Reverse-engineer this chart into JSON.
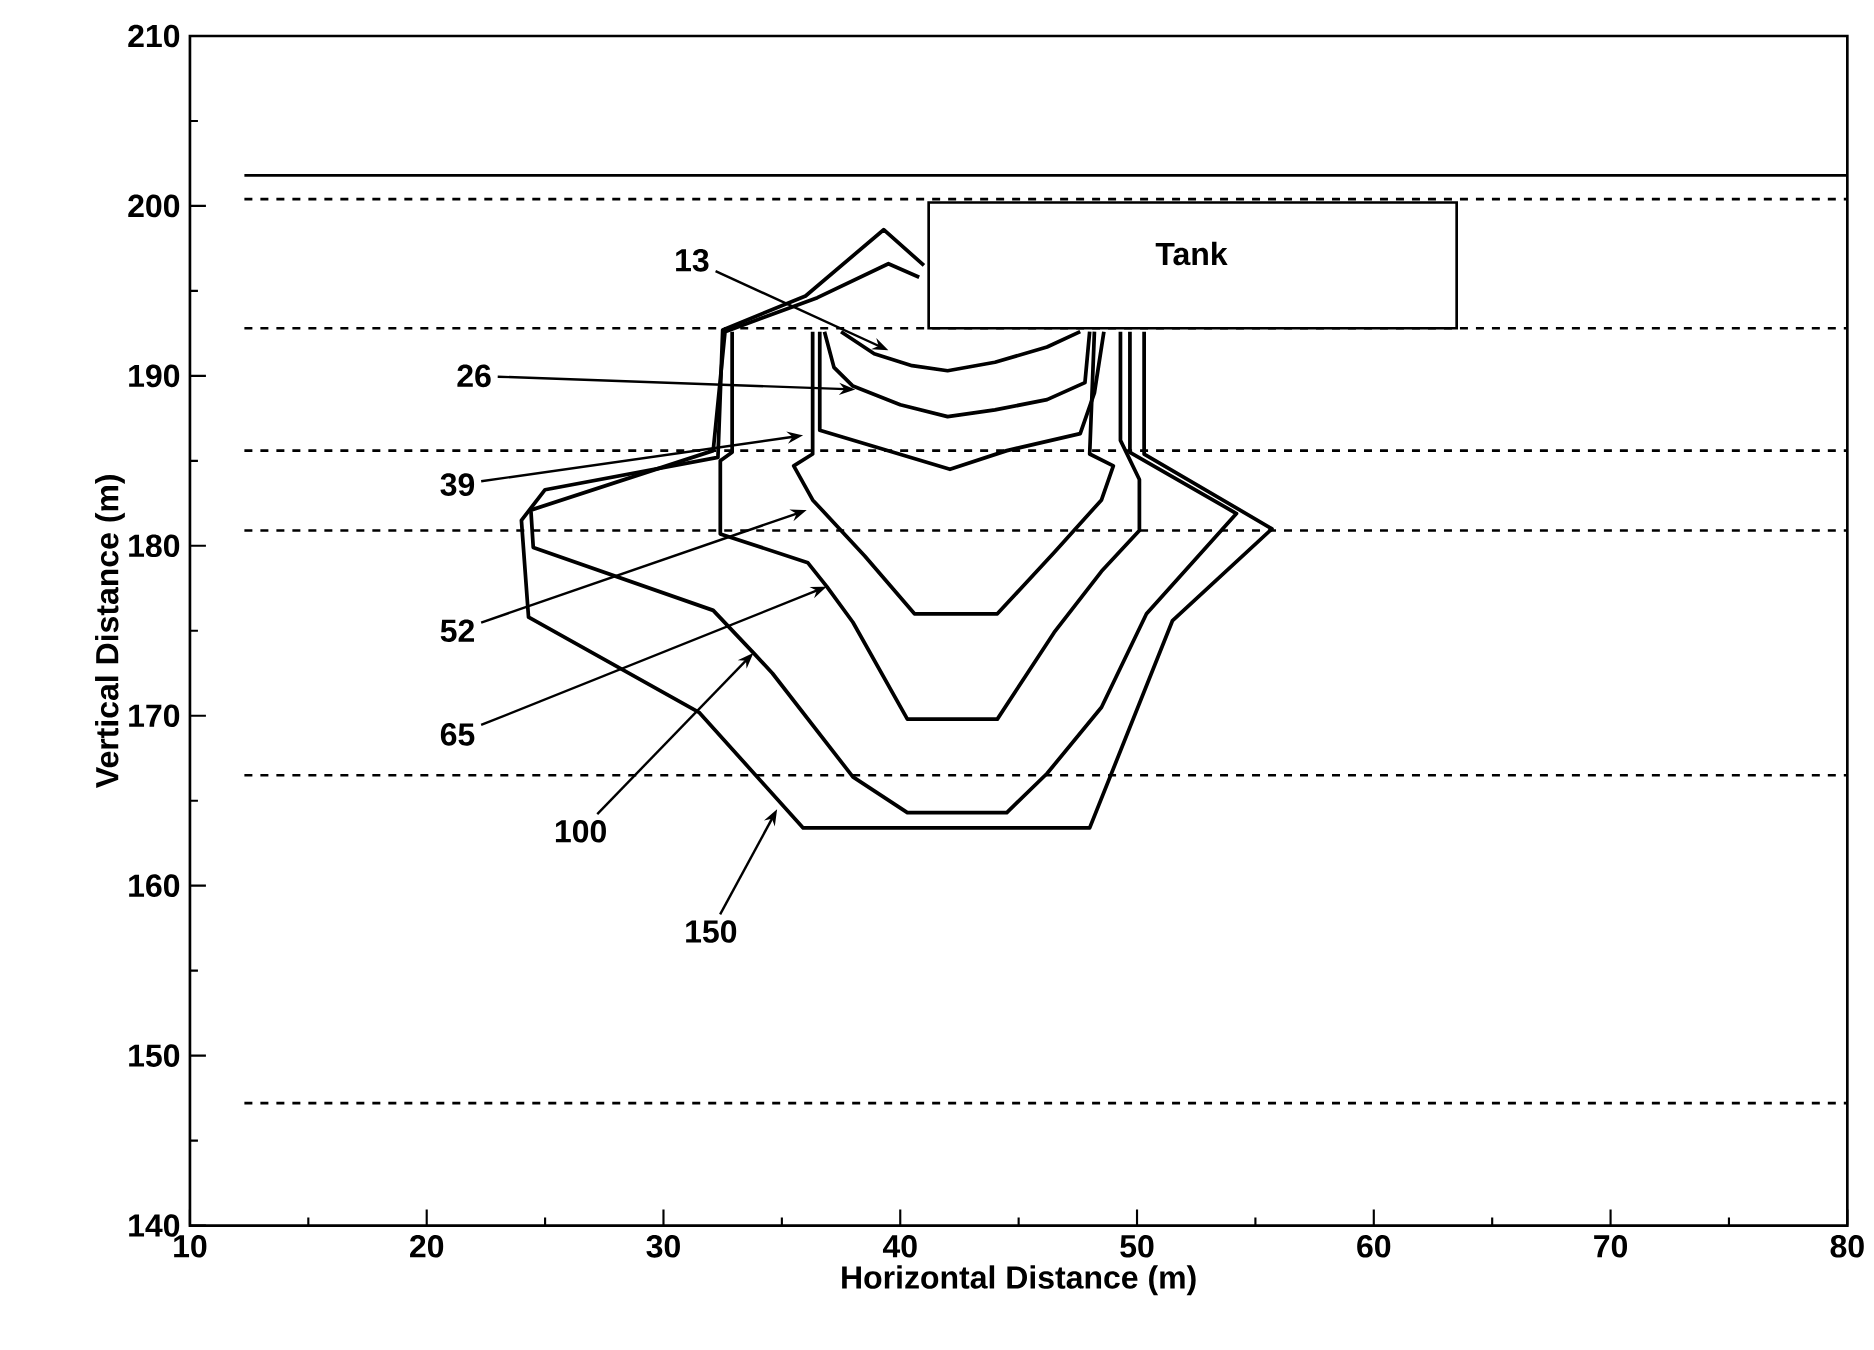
{
  "chart_data": {
    "type": "line",
    "xlabel": "Horizontal Distance (m)",
    "ylabel": "Vertical Distance (m)",
    "xlim": [
      10,
      80
    ],
    "ylim": [
      140,
      210
    ],
    "xticks": [
      10,
      20,
      30,
      40,
      50,
      60,
      70,
      80
    ],
    "yticks": [
      140,
      150,
      160,
      170,
      180,
      190,
      200,
      210
    ],
    "grid": false,
    "line_style": "solid",
    "series": [
      {
        "color": "#000000",
        "x": [
          37.5,
          38.9,
          40.5,
          42,
          44,
          46.2,
          47.6
        ],
        "values": [
          192.6,
          191.3,
          190.6,
          190.3,
          190.8,
          191.7,
          192.6
        ]
      },
      {
        "color": "#000000",
        "x": [
          36.8,
          37.2,
          38,
          40,
          42,
          44,
          46.2,
          47.8,
          48
        ],
        "values": [
          192.6,
          190.5,
          189.4,
          188.3,
          187.6,
          188,
          188.6,
          189.6,
          192.6
        ]
      },
      {
        "color": "#000000",
        "x": [
          36.6,
          36.6,
          39,
          42.1,
          44.5,
          47.6,
          48.2,
          48.6
        ],
        "values": [
          192.6,
          186.8,
          185.8,
          184.5,
          185.6,
          186.6,
          189,
          192.6
        ]
      },
      {
        "color": "#000000",
        "x": [
          36.3,
          36.3,
          35.5,
          36.3,
          38.5,
          40.6,
          44.1,
          46.5,
          48.5,
          49,
          48,
          48.2
        ],
        "values": [
          192.6,
          185.4,
          184.7,
          182.7,
          179.4,
          176,
          176,
          179.6,
          182.7,
          184.7,
          185.4,
          192.6
        ]
      },
      {
        "color": "#000000",
        "x": [
          32.9,
          32.9,
          32.4,
          32.4,
          36.1,
          36.9,
          38,
          40.3,
          44.1,
          46.5,
          48.5,
          50.1,
          50.1,
          49.3,
          49.3
        ],
        "values": [
          192.6,
          185.5,
          185,
          180.7,
          179,
          177.6,
          175.5,
          169.8,
          169.8,
          174.9,
          178.5,
          180.9,
          183.9,
          186.2,
          192.6
        ]
      },
      {
        "color": "#000000",
        "x": [
          40.8,
          39.5,
          36.5,
          32.6,
          32.1,
          24.4,
          24.5,
          32.1,
          33.8,
          34.6,
          38,
          40.3,
          44.5,
          46.2,
          48.5,
          50.4,
          54.2,
          49.7,
          49.7
        ],
        "values": [
          195.8,
          196.6,
          194.6,
          192.6,
          185.6,
          182.1,
          179.9,
          176.2,
          173.7,
          172.5,
          166.4,
          164.3,
          164.3,
          166.6,
          170.5,
          176,
          181.9,
          185.5,
          192.6
        ]
      },
      {
        "color": "#000000",
        "x": [
          41,
          39.3,
          36,
          32.5,
          32.3,
          25,
          24,
          24.3,
          31.5,
          35.9,
          48,
          51.5,
          55.7,
          50.3,
          50.3
        ],
        "values": [
          196.5,
          198.6,
          194.7,
          192.7,
          185.2,
          183.3,
          181.5,
          175.8,
          170.2,
          163.4,
          163.4,
          175.6,
          181,
          185.4,
          192.6
        ]
      }
    ],
    "ref_lines": [
      {
        "axis": "y",
        "value": 201.8,
        "line_style": "solid"
      },
      {
        "axis": "y",
        "value": 200.4,
        "line_style": "dashed"
      },
      {
        "axis": "y",
        "value": 192.8,
        "line_style": "dashed"
      },
      {
        "axis": "y",
        "value": 185.6,
        "line_style": "dashed"
      },
      {
        "axis": "y",
        "value": 180.9,
        "line_style": "dashed"
      },
      {
        "axis": "y",
        "value": 166.5,
        "line_style": "dashed"
      },
      {
        "axis": "y",
        "value": 147.2,
        "line_style": "dashed"
      }
    ],
    "annotations": [
      {
        "text": "13",
        "x": 39.5,
        "y": 191.5
      },
      {
        "text": "26",
        "x": 38.1,
        "y": 189.2
      },
      {
        "text": "39",
        "x": 35.9,
        "y": 186.5
      },
      {
        "text": "52",
        "x": 36.05,
        "y": 182.1
      },
      {
        "text": "65",
        "x": 36.9,
        "y": 177.6
      },
      {
        "text": "100",
        "x": 33.8,
        "y": 173.7
      },
      {
        "text": "150",
        "x": 34.8,
        "y": 164.5
      },
      "Tank"
    ]
  }
}
